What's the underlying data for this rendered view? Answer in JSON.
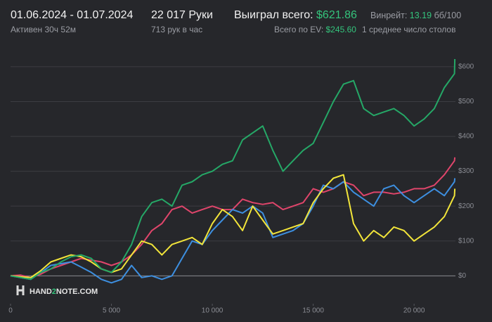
{
  "header": {
    "date_range": "01.06.2024 - 01.07.2024",
    "active": "Активен 30ч 52м",
    "hands": "22 017 Руки",
    "hands_per_hour": "713 рук в час",
    "won_label": "Выиграл всего:",
    "won_value": "$621.86",
    "winrate_label": "Винрейт:",
    "winrate_value": "13.19",
    "winrate_unit": "бб/100",
    "ev_label": "Всего по EV:",
    "ev_value": "$245.60",
    "tables": "1 среднее число столов"
  },
  "logo": {
    "part1": "HAND",
    "part2": "2",
    "part3": "NOTE.COM"
  },
  "chart_data": {
    "type": "line",
    "grid": true,
    "x": [
      0,
      500,
      1000,
      1500,
      2000,
      2500,
      3000,
      3500,
      4000,
      4500,
      5000,
      5500,
      6000,
      6500,
      7000,
      7500,
      8000,
      8500,
      9000,
      9500,
      10000,
      10500,
      11000,
      11500,
      12000,
      12500,
      13000,
      13500,
      14000,
      14500,
      15000,
      15500,
      16000,
      16500,
      17000,
      17500,
      18000,
      18500,
      19000,
      19500,
      20000,
      20500,
      21000,
      21500,
      22000,
      22017
    ],
    "xlim": [
      0,
      22050
    ],
    "xticks": [
      0,
      {
        "value": 5000,
        "label": "5 000"
      },
      {
        "value": 10000,
        "label": "10 000"
      },
      {
        "value": 15000,
        "label": "15 000"
      },
      {
        "value": 20000,
        "label": "20 000"
      }
    ],
    "ylim": [
      -80,
      630
    ],
    "yticks": [
      {
        "value": 0,
        "label": "$0"
      },
      {
        "value": 100,
        "label": "$100"
      },
      {
        "value": 200,
        "label": "$200"
      },
      {
        "value": 300,
        "label": "$300"
      },
      {
        "value": 400,
        "label": "$400"
      },
      {
        "value": 500,
        "label": "$500"
      },
      {
        "value": 600,
        "label": "$600"
      }
    ],
    "series": [
      {
        "color": "#e0456b",
        "values": [
          0,
          2,
          -5,
          5,
          20,
          30,
          40,
          50,
          45,
          40,
          30,
          40,
          60,
          90,
          130,
          150,
          190,
          200,
          180,
          190,
          200,
          190,
          190,
          220,
          210,
          205,
          210,
          190,
          200,
          210,
          250,
          240,
          250,
          270,
          260,
          230,
          240,
          240,
          235,
          240,
          250,
          250,
          260,
          290,
          330,
          340
        ]
      },
      {
        "color": "#3d8fe0",
        "values": [
          0,
          -5,
          -10,
          10,
          30,
          35,
          40,
          25,
          10,
          -10,
          -20,
          -10,
          30,
          -5,
          0,
          -10,
          0,
          50,
          100,
          90,
          130,
          160,
          190,
          180,
          200,
          180,
          110,
          120,
          130,
          150,
          200,
          260,
          250,
          270,
          240,
          220,
          200,
          250,
          260,
          230,
          210,
          230,
          250,
          230,
          270,
          280
        ]
      },
      {
        "color": "#f2e53a",
        "values": [
          0,
          -3,
          -5,
          15,
          40,
          50,
          60,
          55,
          40,
          20,
          10,
          20,
          60,
          100,
          90,
          60,
          90,
          100,
          110,
          90,
          150,
          190,
          170,
          130,
          200,
          160,
          120,
          130,
          140,
          150,
          210,
          250,
          280,
          290,
          150,
          100,
          130,
          110,
          140,
          130,
          100,
          120,
          140,
          170,
          230,
          250
        ]
      },
      {
        "color": "#25a867",
        "values": [
          0,
          -5,
          -10,
          10,
          20,
          40,
          55,
          60,
          50,
          20,
          10,
          40,
          90,
          170,
          210,
          220,
          200,
          260,
          270,
          290,
          300,
          320,
          330,
          390,
          410,
          430,
          360,
          300,
          330,
          360,
          380,
          440,
          500,
          550,
          560,
          480,
          460,
          470,
          480,
          460,
          430,
          450,
          480,
          540,
          580,
          621.86
        ]
      }
    ]
  }
}
